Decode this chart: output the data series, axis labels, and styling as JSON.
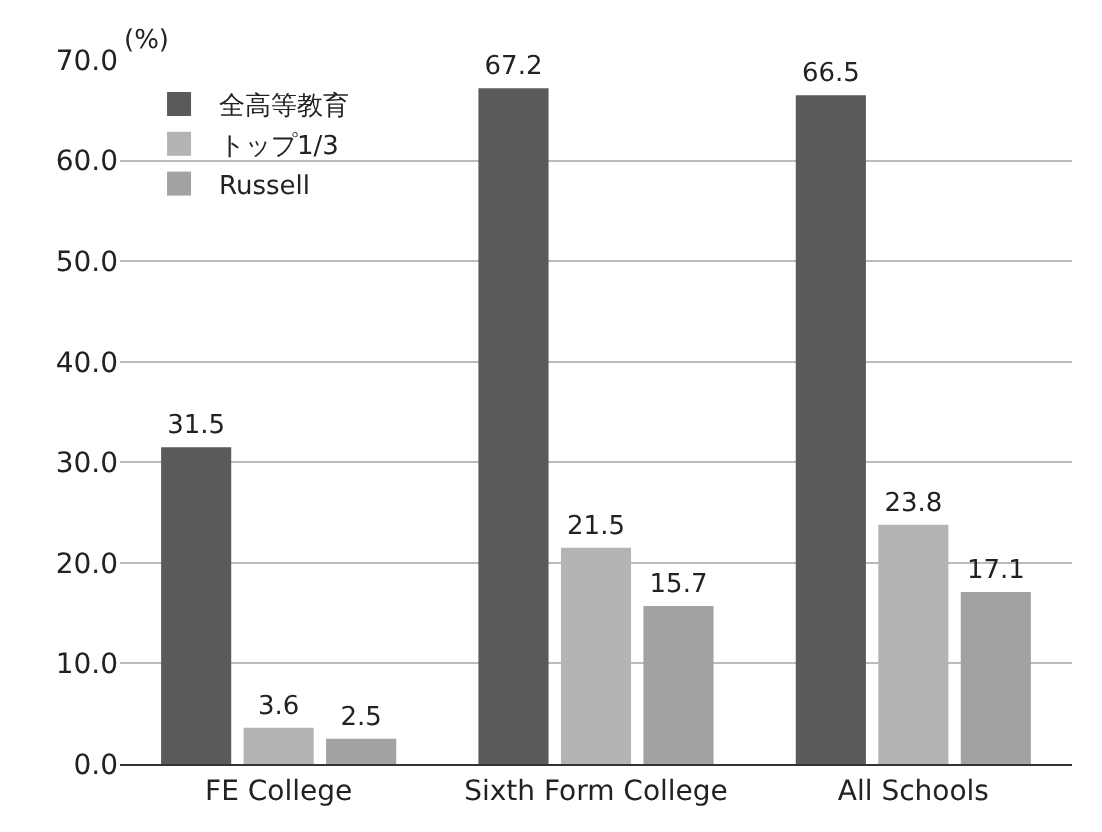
{
  "chart_data": {
    "type": "bar",
    "ylabel": "(%)",
    "categories": [
      "FE College",
      "Sixth Form College",
      "All Schools"
    ],
    "series": [
      {
        "name": "全高等教育",
        "color": "#5a5a5c",
        "values": [
          31.5,
          67.2,
          66.5
        ]
      },
      {
        "name": "トップ1/3",
        "color": "#b4b4b4",
        "values": [
          3.6,
          21.5,
          23.8
        ]
      },
      {
        "name": "Russell",
        "color": "#a2a2a2",
        "values": [
          2.5,
          15.7,
          17.1
        ]
      }
    ],
    "ylim": [
      0,
      70
    ],
    "yticks": [
      {
        "value": 0,
        "label": "0.0"
      },
      {
        "value": 10,
        "label": "10.0"
      },
      {
        "value": 20,
        "label": "20.0"
      },
      {
        "value": 30,
        "label": "30.0"
      },
      {
        "value": 40,
        "label": "40.0"
      },
      {
        "value": 50,
        "label": "50.0"
      },
      {
        "value": 60,
        "label": "60.0"
      },
      {
        "value": 70,
        "label": "70.0"
      }
    ],
    "grid": "y",
    "legend": "top left",
    "data_labels": true
  }
}
